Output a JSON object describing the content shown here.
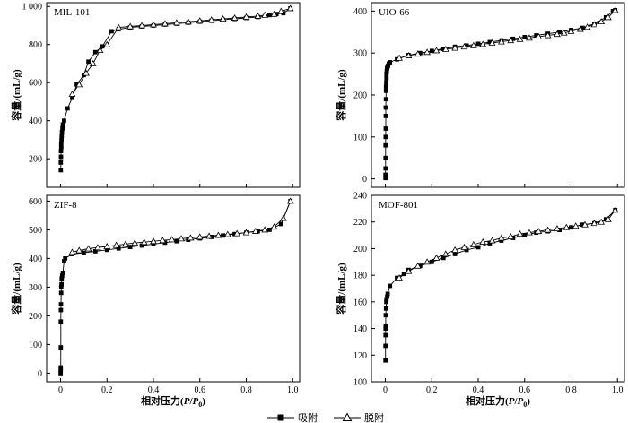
{
  "figure": {
    "xlabel_prefix": "相对压力(",
    "xlabel_p": "P",
    "xlabel_slash": "/",
    "xlabel_p0": "P",
    "xlabel_sub": "0",
    "xlabel_suffix": ")",
    "ylabel": "容量/(mL/g)"
  },
  "legend": {
    "adsorption": "吸附",
    "desorption": "脱附"
  },
  "colors": {
    "line": "#000000",
    "frame": "#000000",
    "background": "#ffffff"
  },
  "chart_data": [
    {
      "type": "line",
      "title": "MIL-101",
      "xlim": [
        -0.06,
        1.03
      ],
      "ylim": [
        50,
        1020
      ],
      "yticks": [
        200,
        400,
        600,
        800,
        1000
      ],
      "yticklabels": [
        "200",
        "400",
        "600",
        "800",
        "1 000"
      ],
      "xticks": [
        0,
        0.2,
        0.4,
        0.6,
        0.8,
        1.0
      ],
      "xticklabels": [],
      "series": [
        {
          "name": "吸附",
          "marker": "square",
          "x": [
            0.001,
            0.001,
            0.002,
            0.002,
            0.003,
            0.003,
            0.004,
            0.005,
            0.006,
            0.008,
            0.01,
            0.015,
            0.03,
            0.05,
            0.07,
            0.1,
            0.12,
            0.15,
            0.18,
            0.22,
            0.25,
            0.3,
            0.35,
            0.4,
            0.45,
            0.5,
            0.55,
            0.6,
            0.65,
            0.7,
            0.75,
            0.8,
            0.85,
            0.9,
            0.93,
            0.96,
            0.99
          ],
          "y": [
            140,
            180,
            210,
            240,
            260,
            280,
            300,
            320,
            340,
            360,
            380,
            400,
            465,
            520,
            590,
            640,
            710,
            760,
            790,
            870,
            880,
            890,
            895,
            900,
            905,
            910,
            915,
            920,
            925,
            930,
            935,
            940,
            945,
            955,
            960,
            965,
            990
          ]
        },
        {
          "name": "脱附",
          "marker": "triangle",
          "x": [
            0.99,
            0.95,
            0.92,
            0.88,
            0.85,
            0.8,
            0.75,
            0.7,
            0.65,
            0.6,
            0.55,
            0.5,
            0.45,
            0.4,
            0.35,
            0.3,
            0.25,
            0.2,
            0.17,
            0.14,
            0.11,
            0.08,
            0.05
          ],
          "y": [
            990,
            975,
            960,
            955,
            950,
            945,
            940,
            935,
            930,
            925,
            920,
            915,
            910,
            905,
            900,
            895,
            890,
            800,
            770,
            700,
            650,
            590,
            540
          ]
        }
      ]
    },
    {
      "type": "line",
      "title": "UIO-66",
      "xlim": [
        -0.06,
        1.03
      ],
      "ylim": [
        -20,
        420
      ],
      "yticks": [
        0,
        100,
        200,
        300,
        400
      ],
      "yticklabels": [
        "0",
        "100",
        "200",
        "300",
        "400"
      ],
      "xticks": [
        0,
        0.2,
        0.4,
        0.6,
        0.8,
        1.0
      ],
      "xticklabels": [],
      "series": [
        {
          "name": "吸附",
          "marker": "square",
          "x": [
            0.0005,
            0.0008,
            0.001,
            0.001,
            0.0012,
            0.0015,
            0.0018,
            0.002,
            0.002,
            0.0025,
            0.003,
            0.003,
            0.004,
            0.005,
            0.005,
            0.006,
            0.007,
            0.008,
            0.01,
            0.012,
            0.015,
            0.02,
            0.05,
            0.1,
            0.15,
            0.2,
            0.25,
            0.3,
            0.35,
            0.4,
            0.45,
            0.5,
            0.55,
            0.6,
            0.65,
            0.7,
            0.75,
            0.8,
            0.85,
            0.9,
            0.95,
            0.98,
            0.99
          ],
          "y": [
            2,
            10,
            25,
            50,
            80,
            100,
            120,
            150,
            170,
            190,
            210,
            220,
            230,
            240,
            250,
            255,
            260,
            265,
            268,
            270,
            275,
            278,
            285,
            295,
            300,
            305,
            310,
            315,
            318,
            322,
            326,
            330,
            334,
            338,
            342,
            346,
            350,
            355,
            360,
            370,
            385,
            400,
            402
          ]
        },
        {
          "name": "脱附",
          "marker": "triangle",
          "x": [
            0.99,
            0.96,
            0.93,
            0.9,
            0.87,
            0.84,
            0.8,
            0.77,
            0.74,
            0.7,
            0.66,
            0.62,
            0.58,
            0.54,
            0.5,
            0.46,
            0.42,
            0.38,
            0.34,
            0.3,
            0.26,
            0.22,
            0.18,
            0.14,
            0.1,
            0.06
          ],
          "y": [
            402,
            385,
            375,
            368,
            362,
            357,
            352,
            348,
            345,
            342,
            339,
            336,
            333,
            330,
            327,
            324,
            321,
            318,
            315,
            312,
            309,
            306,
            302,
            298,
            294,
            288
          ]
        }
      ]
    },
    {
      "type": "line",
      "title": "ZIF-8",
      "xlim": [
        -0.06,
        1.03
      ],
      "ylim": [
        -30,
        620
      ],
      "yticks": [
        0,
        100,
        200,
        300,
        400,
        500,
        600
      ],
      "yticklabels": [
        "0",
        "100",
        "200",
        "300",
        "400",
        "500",
        "600"
      ],
      "xticks": [
        0,
        0.2,
        0.4,
        0.6,
        0.8,
        1.0
      ],
      "xticklabels": [
        "0",
        "0.2",
        "0.4",
        "0.6",
        "0.8",
        "1.0"
      ],
      "series": [
        {
          "name": "吸附",
          "marker": "square",
          "x": [
            0.0003,
            0.0005,
            0.0008,
            0.001,
            0.0012,
            0.0015,
            0.002,
            0.0025,
            0.003,
            0.004,
            0.005,
            0.007,
            0.01,
            0.015,
            0.02,
            0.05,
            0.1,
            0.15,
            0.2,
            0.25,
            0.3,
            0.35,
            0.4,
            0.45,
            0.5,
            0.55,
            0.6,
            0.65,
            0.7,
            0.75,
            0.8,
            0.85,
            0.9,
            0.95,
            0.99
          ],
          "y": [
            0,
            10,
            20,
            90,
            180,
            220,
            240,
            280,
            300,
            310,
            330,
            340,
            350,
            390,
            400,
            415,
            420,
            425,
            430,
            435,
            440,
            445,
            450,
            455,
            460,
            465,
            470,
            475,
            480,
            485,
            490,
            495,
            500,
            520,
            600
          ]
        },
        {
          "name": "脱附",
          "marker": "triangle",
          "x": [
            0.99,
            0.96,
            0.92,
            0.88,
            0.84,
            0.8,
            0.76,
            0.72,
            0.68,
            0.64,
            0.6,
            0.56,
            0.52,
            0.48,
            0.44,
            0.4,
            0.36,
            0.32,
            0.28,
            0.24,
            0.2,
            0.16,
            0.12,
            0.08,
            0.05
          ],
          "y": [
            600,
            540,
            510,
            500,
            495,
            490,
            487,
            484,
            481,
            478,
            475,
            472,
            469,
            466,
            463,
            460,
            457,
            454,
            450,
            446,
            442,
            438,
            434,
            428,
            422
          ]
        }
      ]
    },
    {
      "type": "line",
      "title": "MOF-801",
      "xlim": [
        -0.06,
        1.03
      ],
      "ylim": [
        100,
        240
      ],
      "yticks": [
        100,
        120,
        140,
        160,
        180,
        200,
        220,
        240
      ],
      "yticklabels": [
        "100",
        "120",
        "140",
        "160",
        "180",
        "200",
        "220",
        "240"
      ],
      "xticks": [
        0,
        0.2,
        0.4,
        0.6,
        0.8,
        1.0
      ],
      "xticklabels": [
        "0",
        "0.2",
        "0.4",
        "0.6",
        "0.8",
        "1.0"
      ],
      "series": [
        {
          "name": "吸附",
          "marker": "square",
          "x": [
            0.0005,
            0.0008,
            0.001,
            0.0012,
            0.0015,
            0.002,
            0.003,
            0.004,
            0.005,
            0.008,
            0.01,
            0.02,
            0.05,
            0.08,
            0.1,
            0.15,
            0.2,
            0.25,
            0.3,
            0.35,
            0.4,
            0.45,
            0.5,
            0.55,
            0.6,
            0.65,
            0.7,
            0.75,
            0.8,
            0.85,
            0.9,
            0.95,
            0.99
          ],
          "y": [
            116,
            127,
            135,
            140,
            142,
            150,
            155,
            160,
            162,
            164,
            166,
            172,
            178,
            181,
            184,
            187,
            190,
            193,
            196,
            199,
            201,
            204,
            206,
            208,
            210,
            212,
            213,
            214,
            216,
            218,
            219,
            222,
            229
          ]
        },
        {
          "name": "脱附",
          "marker": "triangle",
          "x": [
            0.99,
            0.96,
            0.93,
            0.9,
            0.86,
            0.82,
            0.78,
            0.74,
            0.7,
            0.66,
            0.62,
            0.58,
            0.54,
            0.5,
            0.46,
            0.42,
            0.38,
            0.34,
            0.3,
            0.26,
            0.22,
            0.18,
            0.14,
            0.1,
            0.06
          ],
          "y": [
            229,
            222,
            220,
            219,
            218,
            217,
            216,
            215,
            214,
            213,
            212,
            211,
            209,
            208,
            206,
            205,
            203,
            201,
            199,
            196,
            193,
            190,
            187,
            183,
            178
          ]
        }
      ]
    }
  ]
}
